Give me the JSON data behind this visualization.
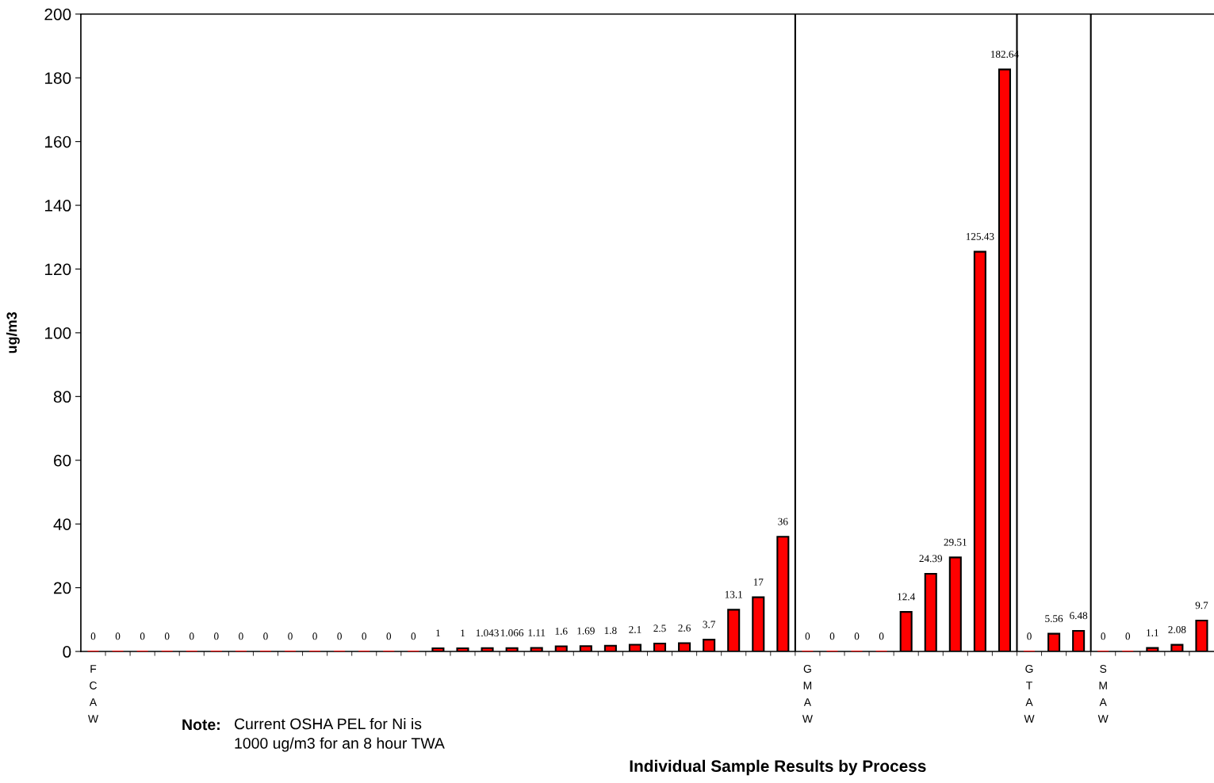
{
  "chart_data": {
    "type": "bar",
    "xlabel": "Individual Sample Results by Process",
    "ylabel": "ug/m3",
    "categories": [
      "FCAW",
      null,
      null,
      null,
      null,
      null,
      null,
      null,
      null,
      null,
      null,
      null,
      null,
      null,
      null,
      null,
      null,
      null,
      null,
      null,
      null,
      null,
      null,
      null,
      null,
      null,
      null,
      null,
      null,
      "GMAW",
      null,
      null,
      null,
      null,
      null,
      null,
      null,
      null,
      "GTAW",
      null,
      null,
      "SMAW",
      null,
      null,
      null,
      null
    ],
    "values": [
      0,
      0,
      0,
      0,
      0,
      0,
      0,
      0,
      0,
      0,
      0,
      0,
      0,
      0,
      1,
      1,
      1.043,
      1.066,
      1.11,
      1.6,
      1.69,
      1.8,
      2.1,
      2.5,
      2.6,
      3.7,
      13.1,
      17,
      36,
      0,
      0,
      0,
      0,
      12.4,
      24.39,
      29.51,
      125.43,
      182.64,
      0,
      5.56,
      6.48,
      0,
      0,
      1.1,
      2.08,
      9.7
    ],
    "color": "#ff0000",
    "data_labels": true,
    "ylim": [
      0,
      200
    ],
    "yticks": [
      0,
      20,
      40,
      60,
      80,
      100,
      120,
      140,
      160,
      180,
      200
    ],
    "annotations": [
      "Note:",
      "Current OSHA PEL for Ni is\n1000 ug/m3 for an 8 hour TWA"
    ],
    "grid": false,
    "legend": false
  }
}
